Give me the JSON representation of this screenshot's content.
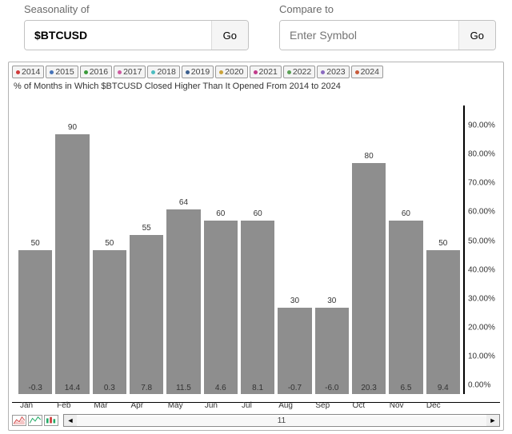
{
  "inputs": {
    "seasonality_label": "Seasonality of",
    "seasonality_value": "$BTCUSD",
    "compare_label": "Compare to",
    "compare_placeholder": "Enter Symbol",
    "go_label": "Go"
  },
  "years": [
    {
      "label": "2014",
      "dot": "#d13b3b"
    },
    {
      "label": "2015",
      "dot": "#4673b8"
    },
    {
      "label": "2016",
      "dot": "#3a9a3a"
    },
    {
      "label": "2017",
      "dot": "#cf5aa0"
    },
    {
      "label": "2018",
      "dot": "#4cbcc0"
    },
    {
      "label": "2019",
      "dot": "#3b5f8f"
    },
    {
      "label": "2020",
      "dot": "#caa23a"
    },
    {
      "label": "2021",
      "dot": "#c03a8a"
    },
    {
      "label": "2022",
      "dot": "#5aa055"
    },
    {
      "label": "2023",
      "dot": "#8a6ac0"
    },
    {
      "label": "2024",
      "dot": "#c85a3a"
    }
  ],
  "chart": {
    "title": "% of Months in Which $BTCUSD Closed Higher Than It Opened From 2014 to 2024",
    "type": "bar",
    "bar_color": "#8e8e8e",
    "background_color": "#ffffff",
    "axis_color": "#000000",
    "title_fontsize": 11,
    "label_fontsize": 10,
    "ylim_max": 100,
    "y_ticks": [
      "90.00%",
      "80.00%",
      "70.00%",
      "60.00%",
      "50.00%",
      "40.00%",
      "30.00%",
      "20.00%",
      "10.00%",
      "0.00%"
    ],
    "y_tick_values": [
      90,
      80,
      70,
      60,
      50,
      40,
      30,
      20,
      10,
      0
    ],
    "categories": [
      "Jan",
      "Feb",
      "Mar",
      "Apr",
      "May",
      "Jun",
      "Jul",
      "Aug",
      "Sep",
      "Oct",
      "Nov",
      "Dec"
    ],
    "values": [
      50,
      90,
      50,
      55,
      64,
      60,
      60,
      30,
      30,
      80,
      60,
      50
    ],
    "bottom_values": [
      "-0.3",
      "14.4",
      "0.3",
      "7.8",
      "11.5",
      "4.6",
      "8.1",
      "-0.7",
      "-6.0",
      "20.3",
      "6.5",
      "9.4"
    ]
  },
  "footer": {
    "thumbs": [
      "area-thumb",
      "line-thumb",
      "candle-thumb"
    ],
    "scroll_value": "11",
    "arrow_left": "◄",
    "arrow_right": "►"
  }
}
